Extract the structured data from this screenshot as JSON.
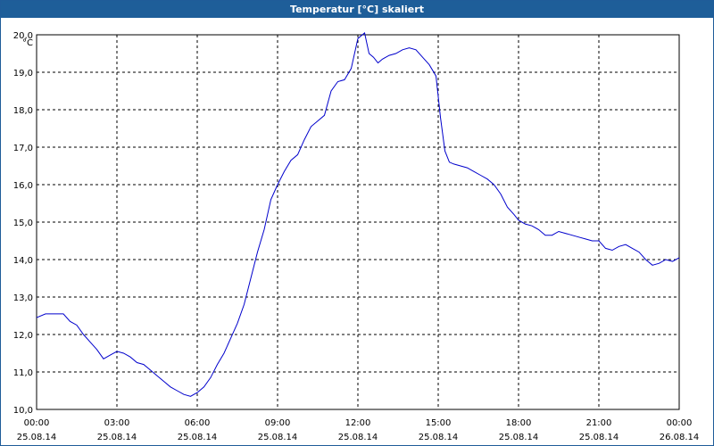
{
  "window": {
    "title": "Temperatur [°C] skaliert"
  },
  "chart_data": {
    "type": "line",
    "title": "Temperatur [°C] skaliert",
    "ylabel": "°C",
    "xlabel": "",
    "ylim": [
      10.0,
      20.0
    ],
    "y_ticks": [
      "10,0",
      "11,0",
      "12,0",
      "13,0",
      "14,0",
      "15,0",
      "16,0",
      "17,0",
      "18,0",
      "19,0",
      "20,0"
    ],
    "x_ticks": [
      {
        "time": "00:00",
        "date": "25.08.14"
      },
      {
        "time": "03:00",
        "date": "25.08.14"
      },
      {
        "time": "06:00",
        "date": "25.08.14"
      },
      {
        "time": "09:00",
        "date": "25.08.14"
      },
      {
        "time": "12:00",
        "date": "25.08.14"
      },
      {
        "time": "15:00",
        "date": "25.08.14"
      },
      {
        "time": "18:00",
        "date": "25.08.14"
      },
      {
        "time": "21:00",
        "date": "25.08.14"
      },
      {
        "time": "00:00",
        "date": "26.08.14"
      }
    ],
    "x_range": [
      "25.08.14 00:00",
      "26.08.14 00:00"
    ],
    "grid": true,
    "line_color": "#0000cc",
    "series": [
      {
        "x": [
          "00:00",
          "00:20",
          "00:40",
          "01:00",
          "01:15",
          "01:30",
          "01:45",
          "02:00",
          "02:15",
          "02:30",
          "02:45",
          "03:00",
          "03:15",
          "03:30",
          "03:45",
          "04:00",
          "04:15",
          "04:30",
          "04:45",
          "05:00",
          "05:15",
          "05:30",
          "05:45",
          "06:00",
          "06:15",
          "06:30",
          "06:45",
          "07:00",
          "07:15",
          "07:30",
          "07:45",
          "08:00",
          "08:15",
          "08:30",
          "08:45",
          "09:00",
          "09:15",
          "09:30",
          "09:45",
          "10:00",
          "10:15",
          "10:30",
          "10:45",
          "11:00",
          "11:15",
          "11:30",
          "11:45",
          "12:00",
          "12:15",
          "12:25",
          "12:35",
          "12:45",
          "12:55",
          "13:10",
          "13:25",
          "13:40",
          "13:55",
          "14:10",
          "14:25",
          "14:40",
          "14:55",
          "15:05",
          "15:15",
          "15:25",
          "15:35",
          "15:50",
          "16:05",
          "16:20",
          "16:35",
          "16:50",
          "17:05",
          "17:20",
          "17:35",
          "17:50",
          "18:00",
          "18:15",
          "18:30",
          "18:45",
          "19:00",
          "19:15",
          "19:30",
          "19:45",
          "20:00",
          "20:15",
          "20:30",
          "20:45",
          "21:00",
          "21:15",
          "21:30",
          "21:45",
          "22:00",
          "22:15",
          "22:30",
          "22:45",
          "23:00",
          "23:15",
          "23:30",
          "23:45",
          "24:00"
        ],
        "y": [
          12.45,
          12.55,
          12.55,
          12.55,
          12.35,
          12.25,
          12.0,
          11.8,
          11.6,
          11.35,
          11.45,
          11.55,
          11.5,
          11.4,
          11.25,
          11.2,
          11.05,
          10.9,
          10.75,
          10.6,
          10.5,
          10.4,
          10.35,
          10.45,
          10.6,
          10.85,
          11.2,
          11.5,
          11.9,
          12.3,
          12.8,
          13.5,
          14.2,
          14.8,
          15.6,
          16.0,
          16.35,
          16.65,
          16.8,
          17.2,
          17.55,
          17.7,
          17.85,
          18.5,
          18.75,
          18.8,
          19.1,
          19.9,
          20.05,
          19.5,
          19.4,
          19.25,
          19.35,
          19.45,
          19.5,
          19.6,
          19.65,
          19.6,
          19.4,
          19.2,
          18.9,
          17.8,
          16.9,
          16.6,
          16.55,
          16.5,
          16.45,
          16.35,
          16.25,
          16.15,
          16.0,
          15.75,
          15.4,
          15.2,
          15.05,
          14.95,
          14.9,
          14.8,
          14.65,
          14.65,
          14.75,
          14.7,
          14.65,
          14.6,
          14.55,
          14.5,
          14.5,
          14.3,
          14.25,
          14.35,
          14.4,
          14.3,
          14.2,
          14.0,
          13.85,
          13.9,
          14.0,
          13.95,
          14.05
        ]
      }
    ]
  }
}
